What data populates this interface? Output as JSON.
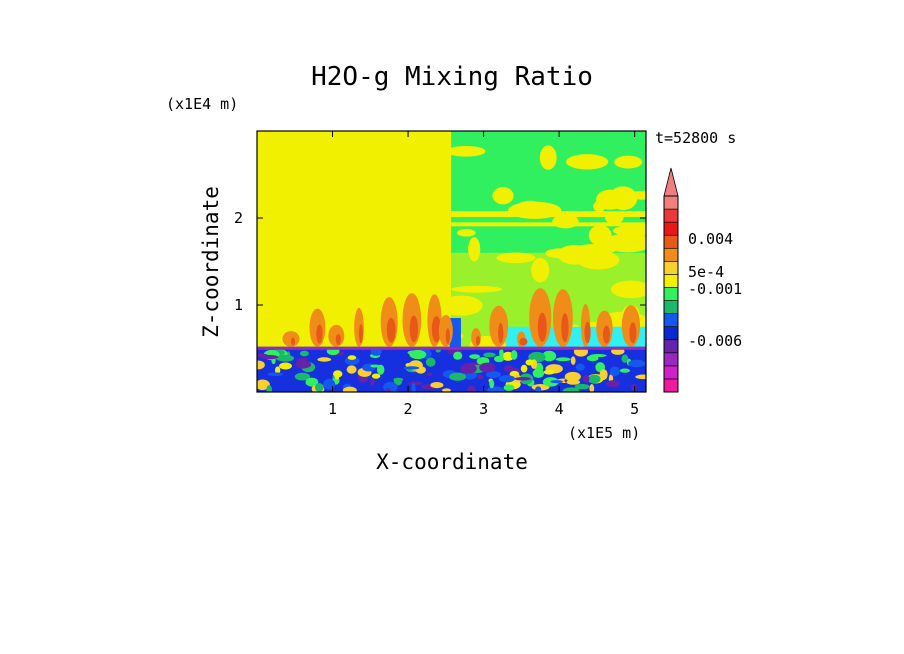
{
  "chart_data": {
    "type": "heatmap",
    "title": "H2O-g Mixing Ratio",
    "time_label": "t=52800 s",
    "xlabel": "X-coordinate",
    "ylabel": "Z-coordinate",
    "x_unit": "(x1E5 m)",
    "y_unit": "(x1E4 m)",
    "xlim": [
      0,
      5.15
    ],
    "ylim": [
      0,
      3
    ],
    "xticks": [
      "1",
      "2",
      "3",
      "4",
      "5"
    ],
    "yticks": [
      "1",
      "2"
    ],
    "colorbar": {
      "labels": [
        "0.004",
        "5e-4",
        "-0.001",
        "-0.006"
      ],
      "colors": [
        "#ee1c9c",
        "#d020c8",
        "#9a28c0",
        "#6622a8",
        "#0a28cc",
        "#1458f0",
        "#1ab86a",
        "#30f060",
        "#f0f000",
        "#f8d030",
        "#f08c18",
        "#e85818",
        "#e81818",
        "#e83a3a",
        "#f08080"
      ]
    },
    "regions": {
      "upper_left": "#f0f000",
      "upper_right": "#30f060",
      "lower_band": "#1630e0",
      "plume": "#f08c18",
      "cyan_patch": "#30f0f0"
    }
  }
}
